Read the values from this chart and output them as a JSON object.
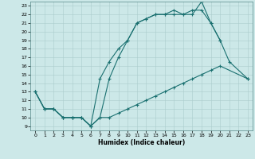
{
  "title": "",
  "xlabel": "Humidex (Indice chaleur)",
  "bg_color": "#cce8e8",
  "line_color": "#1a7070",
  "xlim": [
    -0.5,
    23.5
  ],
  "ylim": [
    8.5,
    23.5
  ],
  "xticks": [
    0,
    1,
    2,
    3,
    4,
    5,
    6,
    7,
    8,
    9,
    10,
    11,
    12,
    13,
    14,
    15,
    16,
    17,
    18,
    19,
    20,
    21,
    22,
    23
  ],
  "yticks": [
    9,
    10,
    11,
    12,
    13,
    14,
    15,
    16,
    17,
    18,
    19,
    20,
    21,
    22,
    23
  ],
  "line1_x": [
    0,
    1,
    2,
    3,
    4,
    5,
    6,
    7,
    8,
    9,
    10,
    11,
    12,
    13,
    14,
    15,
    16,
    17,
    18,
    19,
    20
  ],
  "line1_y": [
    13,
    11,
    11,
    10,
    10,
    10,
    9,
    14.5,
    16.5,
    18,
    19,
    21,
    21.5,
    22,
    22,
    22,
    22,
    22,
    23.5,
    21,
    19
  ],
  "line2_x": [
    0,
    1,
    2,
    3,
    4,
    5,
    6,
    7,
    8,
    9,
    10,
    11,
    12,
    13,
    14,
    15,
    16,
    17,
    18,
    19,
    20,
    23
  ],
  "line2_y": [
    13,
    11,
    11,
    10,
    10,
    10,
    9,
    10,
    10,
    10.5,
    11,
    11.5,
    12,
    12.5,
    13,
    13.5,
    14,
    14.5,
    15,
    15.5,
    16,
    14.5
  ],
  "line3_x": [
    0,
    1,
    2,
    3,
    4,
    5,
    6,
    7,
    8,
    9,
    10,
    11,
    12,
    13,
    14,
    15,
    16,
    17,
    18,
    19,
    20,
    21,
    23
  ],
  "line3_y": [
    13,
    11,
    11,
    10,
    10,
    10,
    9,
    10,
    14.5,
    17,
    19,
    21,
    21.5,
    22,
    22,
    22.5,
    22,
    22.5,
    22.5,
    21,
    19,
    16.5,
    14.5
  ]
}
